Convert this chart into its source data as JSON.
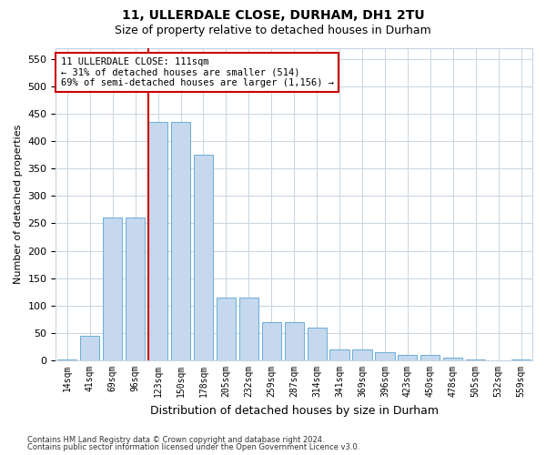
{
  "title1": "11, ULLERDALE CLOSE, DURHAM, DH1 2TU",
  "title2": "Size of property relative to detached houses in Durham",
  "xlabel": "Distribution of detached houses by size in Durham",
  "ylabel": "Number of detached properties",
  "bar_color": "#c5d8ed",
  "bar_edge_color": "#6aaed6",
  "bin_labels": [
    "14sqm",
    "41sqm",
    "69sqm",
    "96sqm",
    "123sqm",
    "150sqm",
    "178sqm",
    "205sqm",
    "232sqm",
    "259sqm",
    "287sqm",
    "314sqm",
    "341sqm",
    "369sqm",
    "396sqm",
    "423sqm",
    "450sqm",
    "478sqm",
    "505sqm",
    "532sqm",
    "559sqm"
  ],
  "bar_heights": [
    2,
    45,
    260,
    260,
    435,
    435,
    375,
    115,
    115,
    70,
    70,
    60,
    20,
    20,
    15,
    10,
    10,
    5,
    2,
    0,
    2
  ],
  "property_line_x": 3.57,
  "annotation_text": "11 ULLERDALE CLOSE: 111sqm\n← 31% of detached houses are smaller (514)\n69% of semi-detached houses are larger (1,156) →",
  "annotation_box_color": "#ffffff",
  "annotation_box_edge_color": "#cc0000",
  "vline_color": "#cc0000",
  "ylim": [
    0,
    570
  ],
  "yticks": [
    0,
    50,
    100,
    150,
    200,
    250,
    300,
    350,
    400,
    450,
    500,
    550
  ],
  "footer1": "Contains HM Land Registry data © Crown copyright and database right 2024.",
  "footer2": "Contains public sector information licensed under the Open Government Licence v3.0.",
  "bg_color": "#ffffff",
  "grid_color": "#c8d4e0"
}
